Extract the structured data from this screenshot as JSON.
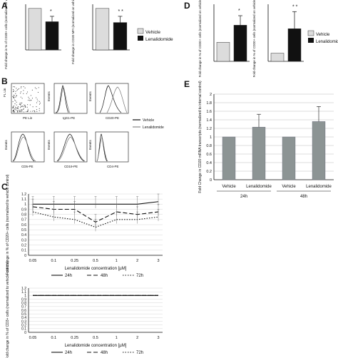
{
  "panels": {
    "A": "A",
    "B": "B",
    "C": "C",
    "D": "D",
    "E": "E"
  },
  "colors": {
    "vehicle": "#dcdcdc",
    "lenalidomide": "#111111",
    "e_bar": "#8c9494"
  },
  "legend": {
    "vehicle": "Vehicle",
    "lenalidomide": "Lenalidomide"
  },
  "flow": {
    "lin_y": "FL Lin",
    "lin_x": "PE Lin",
    "events": "Events",
    "igg1": "IgG1-PE",
    "cd20": "CD20-PE",
    "cd5": "CD5-PE",
    "cd19": "CD19-PE",
    "cd4": "CD4-PE"
  },
  "chart_data": [
    {
      "id": "A1",
      "type": "bar",
      "categories": [
        "Vehicle",
        "Lenalidomide"
      ],
      "values": [
        1.0,
        0.68
      ],
      "errors": [
        0,
        0.13
      ],
      "ylabel": "Fold change in % of CD20+ cells (normalized on vehicle ctrl)",
      "ylim": [
        0,
        1.1
      ],
      "significance": "*",
      "colors": [
        "#dcdcdc",
        "#111111"
      ]
    },
    {
      "id": "A2",
      "type": "bar",
      "categories": [
        "Vehicle",
        "Lenalidomide"
      ],
      "values": [
        1.0,
        0.66
      ],
      "errors": [
        0,
        0.15
      ],
      "ylabel": "Fold change in CD20 MFI (normalized on vehicle ctrl)",
      "ylim": [
        0,
        1.1
      ],
      "significance": "* *",
      "colors": [
        "#dcdcdc",
        "#111111"
      ]
    },
    {
      "id": "D1",
      "type": "bar",
      "categories": [
        "Vehicle",
        "Lenalidomide"
      ],
      "values": [
        1.0,
        1.9
      ],
      "errors": [
        0,
        0.5
      ],
      "ylabel": "Fold change in % of CD20+ cells (normalized on vehicle control)",
      "ylim": [
        0,
        3
      ],
      "significance": "*",
      "colors": [
        "#dcdcdc",
        "#111111"
      ]
    },
    {
      "id": "D2",
      "type": "bar",
      "categories": [
        "Vehicle",
        "Lenalidomide"
      ],
      "values": [
        1.0,
        4.0
      ],
      "errors": [
        0,
        2.1
      ],
      "ylabel": "Fold change in % of CD20+ cells (normalized on vehicle control)",
      "ylim": [
        0,
        7
      ],
      "significance": "* *",
      "colors": [
        "#dcdcdc",
        "#111111"
      ]
    },
    {
      "id": "E",
      "type": "bar",
      "categories": [
        "Vehicle",
        "Lenalidomide",
        "Vehicle",
        "Lenalidomide"
      ],
      "values": [
        1.0,
        1.23,
        1.0,
        1.36
      ],
      "errors": [
        0,
        0.3,
        0,
        0.35
      ],
      "groups": [
        "24h",
        "48h"
      ],
      "ylabel": "Fold Change in CD20 mRNA transcripts (normalized to internal control)",
      "ylim": [
        0,
        2
      ],
      "yticks": [
        "0",
        "0.2",
        "0.4",
        "0.6",
        "0.8",
        "1",
        "1.2",
        "1.4",
        "1.6",
        "1.8",
        "2"
      ]
    },
    {
      "id": "C1",
      "type": "line",
      "x": [
        "0.05",
        "0.1",
        "0.25",
        "0.5",
        "1",
        "2",
        "3"
      ],
      "xlabel": "Lenalidomide concentration [µM]",
      "ylabel": "Fold change in % of CD20+ cells (normalized to vehicle control)",
      "ylim": [
        0,
        1.2
      ],
      "yticks": [
        "0",
        "0.1",
        "0.2",
        "0.3",
        "0.4",
        "0.5",
        "0.6",
        "0.7",
        "0.8",
        "0.9",
        "1",
        "1.1",
        "1.2"
      ],
      "series": [
        {
          "name": "24h",
          "values": [
            1.0,
            1.0,
            1.0,
            1.0,
            1.0,
            1.0,
            1.05
          ],
          "dash": ""
        },
        {
          "name": "48h",
          "values": [
            0.95,
            0.9,
            0.9,
            0.65,
            0.85,
            0.8,
            0.85
          ],
          "dash": "6,3"
        },
        {
          "name": "72h",
          "values": [
            0.85,
            0.75,
            0.7,
            0.55,
            0.7,
            0.7,
            0.75
          ],
          "dash": "1.5,2"
        }
      ]
    },
    {
      "id": "C2",
      "type": "line",
      "x": [
        "0.05",
        "0.1",
        "0.25",
        "0.5",
        "1",
        "2",
        "3"
      ],
      "xlabel": "Lenalidomide concentration [µM]",
      "ylabel": "Fold change in % of CD3+ cells (normalized to vehicle control)",
      "ylim": [
        0,
        1.2
      ],
      "yticks": [
        "0",
        "0.1",
        "0.2",
        "0.3",
        "0.4",
        "0.5",
        "0.6",
        "0.7",
        "0.8",
        "0.9",
        "1",
        "1.1",
        "1.2"
      ],
      "series": [
        {
          "name": "24h",
          "values": [
            1,
            1,
            1,
            1,
            1,
            1,
            1
          ],
          "dash": ""
        },
        {
          "name": "48h",
          "values": [
            1,
            1,
            1,
            1,
            1,
            1,
            1
          ],
          "dash": "6,3"
        },
        {
          "name": "72h",
          "values": [
            1,
            1,
            1,
            1,
            1,
            1,
            1
          ],
          "dash": "1.5,2"
        }
      ]
    }
  ]
}
